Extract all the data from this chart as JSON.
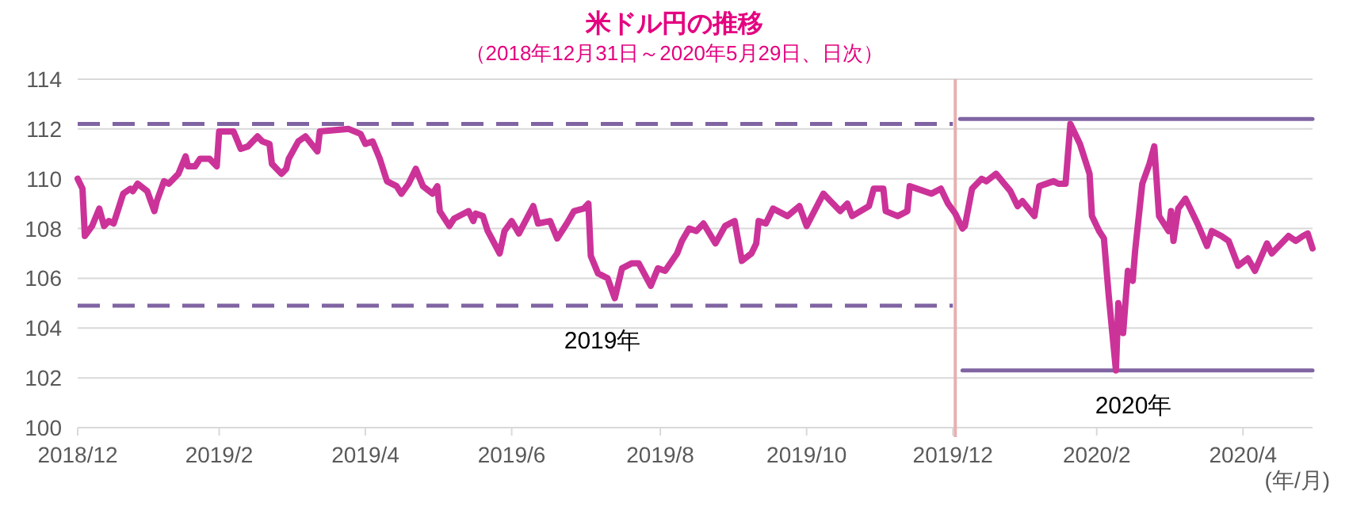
{
  "chart_data": {
    "type": "line",
    "title": "米ドル円の推移",
    "subtitle": "（2018年12月31日～2020年5月29日、日次）",
    "xlim": [
      "2018-12-31",
      "2020-05-29"
    ],
    "xticks": [
      {
        "value": "2018-12-31",
        "label": "2018/12"
      },
      {
        "value": "2019-02-28",
        "label": "2019/2"
      },
      {
        "value": "2019-04-30",
        "label": "2019/4"
      },
      {
        "value": "2019-06-30",
        "label": "2019/6"
      },
      {
        "value": "2019-08-31",
        "label": "2019/8"
      },
      {
        "value": "2019-10-31",
        "label": "2019/10"
      },
      {
        "value": "2019-12-31",
        "label": "2019/12"
      },
      {
        "value": "2020-02-29",
        "label": "2020/2"
      },
      {
        "value": "2020-04-30",
        "label": "2020/4"
      }
    ],
    "ylim": [
      100,
      114
    ],
    "yticks": [
      100,
      102,
      104,
      106,
      108,
      110,
      112,
      114
    ],
    "grid": "y",
    "series": [
      {
        "color": "#cc3399",
        "x": [
          "2018-12-31",
          "2019-01-02",
          "2019-01-03",
          "2019-01-06",
          "2019-01-09",
          "2019-01-11",
          "2019-01-13",
          "2019-01-15",
          "2019-01-17",
          "2019-01-19",
          "2019-01-22",
          "2019-01-23",
          "2019-01-25",
          "2019-01-29",
          "2019-02-01",
          "2019-02-02",
          "2019-02-05",
          "2019-02-07",
          "2019-02-11",
          "2019-02-14",
          "2019-02-15",
          "2019-02-18",
          "2019-02-20",
          "2019-02-24",
          "2019-02-27",
          "2019-02-28",
          "2019-03-06",
          "2019-03-09",
          "2019-03-12",
          "2019-03-16",
          "2019-03-18",
          "2019-03-21",
          "2019-03-22",
          "2019-03-26",
          "2019-03-28",
          "2019-03-29",
          "2019-04-02",
          "2019-04-05",
          "2019-04-10",
          "2019-04-11",
          "2019-04-23",
          "2019-04-28",
          "2019-04-30",
          "2019-05-03",
          "2019-05-06",
          "2019-05-09",
          "2019-05-13",
          "2019-05-15",
          "2019-05-18",
          "2019-05-21",
          "2019-05-24",
          "2019-05-28",
          "2019-05-30",
          "2019-05-31",
          "2019-06-04",
          "2019-06-06",
          "2019-06-10",
          "2019-06-12",
          "2019-06-14",
          "2019-06-15",
          "2019-06-18",
          "2019-06-20",
          "2019-06-25",
          "2019-06-27",
          "2019-06-30",
          "2019-07-03",
          "2019-07-09",
          "2019-07-11",
          "2019-07-16",
          "2019-07-19",
          "2019-07-23",
          "2019-07-26",
          "2019-07-30",
          "2019-08-01",
          "2019-08-02",
          "2019-08-05",
          "2019-08-09",
          "2019-08-12",
          "2019-08-15",
          "2019-08-19",
          "2019-08-22",
          "2019-08-27",
          "2019-08-30",
          "2019-09-02",
          "2019-09-07",
          "2019-09-09",
          "2019-09-12",
          "2019-09-15",
          "2019-09-18",
          "2019-09-23",
          "2019-09-27",
          "2019-10-01",
          "2019-10-04",
          "2019-10-08",
          "2019-10-10",
          "2019-10-11",
          "2019-10-14",
          "2019-10-17",
          "2019-10-23",
          "2019-10-28",
          "2019-10-31",
          "2019-11-07",
          "2019-11-10",
          "2019-11-14",
          "2019-11-17",
          "2019-11-19",
          "2019-11-26",
          "2019-11-28",
          "2019-12-02",
          "2019-12-03",
          "2019-12-08",
          "2019-12-12",
          "2019-12-13",
          "2019-12-22",
          "2019-12-26",
          "2019-12-29",
          "2020-01-01",
          "2020-01-03",
          "2020-01-04",
          "2020-01-05",
          "2020-01-08",
          "2020-01-12",
          "2020-01-14",
          "2020-01-18",
          "2020-01-24",
          "2020-01-27",
          "2020-01-29",
          "2020-02-03",
          "2020-02-05",
          "2020-02-11",
          "2020-02-13",
          "2020-02-16",
          "2020-02-18",
          "2020-02-22",
          "2020-02-26",
          "2020-02-27",
          "2020-03-01",
          "2020-03-03",
          "2020-03-05",
          "2020-03-08",
          "2020-03-09",
          "2020-03-11",
          "2020-03-13",
          "2020-03-15",
          "2020-03-16",
          "2020-03-19",
          "2020-03-22",
          "2020-03-24",
          "2020-03-26",
          "2020-03-30",
          "2020-03-31",
          "2020-04-01",
          "2020-04-03",
          "2020-04-06",
          "2020-04-11",
          "2020-04-15",
          "2020-04-17",
          "2020-04-21",
          "2020-04-24",
          "2020-04-28",
          "2020-05-02",
          "2020-05-05",
          "2020-05-10",
          "2020-05-12",
          "2020-05-19",
          "2020-05-22",
          "2020-05-25",
          "2020-05-27",
          "2020-05-29"
        ],
        "values": [
          110.0,
          109.6,
          107.7,
          108.1,
          108.8,
          108.1,
          108.3,
          108.2,
          108.8,
          109.4,
          109.6,
          109.5,
          109.8,
          109.5,
          108.7,
          109.1,
          109.9,
          109.8,
          110.2,
          110.9,
          110.5,
          110.5,
          110.8,
          110.8,
          110.5,
          111.9,
          111.9,
          111.2,
          111.3,
          111.7,
          111.5,
          111.4,
          110.6,
          110.2,
          110.4,
          110.8,
          111.5,
          111.7,
          111.1,
          111.9,
          112.0,
          111.8,
          111.4,
          111.5,
          110.8,
          109.9,
          109.7,
          109.4,
          109.8,
          110.4,
          109.7,
          109.4,
          109.7,
          108.7,
          108.1,
          108.4,
          108.6,
          108.7,
          108.3,
          108.6,
          108.5,
          107.9,
          107.0,
          107.9,
          108.3,
          107.8,
          108.9,
          108.2,
          108.3,
          107.6,
          108.2,
          108.7,
          108.8,
          109.0,
          106.9,
          106.2,
          106.0,
          105.2,
          106.4,
          106.6,
          106.6,
          105.7,
          106.4,
          106.3,
          107.0,
          107.5,
          108.0,
          107.9,
          108.2,
          107.4,
          108.1,
          108.3,
          106.7,
          107.0,
          107.4,
          108.3,
          108.2,
          108.8,
          108.5,
          108.9,
          108.1,
          109.4,
          109.1,
          108.7,
          109.0,
          108.5,
          108.9,
          109.6,
          109.6,
          108.7,
          108.5,
          108.7,
          109.7,
          109.4,
          109.6,
          109.0,
          108.6,
          108.2,
          108.0,
          108.1,
          109.6,
          110.0,
          109.9,
          110.2,
          109.5,
          108.9,
          109.1,
          108.5,
          109.7,
          109.9,
          109.8,
          109.8,
          112.2,
          111.4,
          110.2,
          108.5,
          107.9,
          107.6,
          105.3,
          102.3,
          105.0,
          103.8,
          106.3,
          105.9,
          107.1,
          109.8,
          110.6,
          111.3,
          108.5,
          107.9,
          108.7,
          107.5,
          108.8,
          109.2,
          108.2,
          107.3,
          107.9,
          107.7,
          107.5,
          106.5,
          106.8,
          106.3,
          107.4,
          107.0,
          107.7,
          107.5,
          107.7,
          107.8,
          107.2
        ]
      },
      {
        "type": "line",
        "color": "#8064a2",
        "line_style": "dashed",
        "x": [
          "2018-12-31",
          "2019-12-31"
        ],
        "values": [
          112.2,
          112.2
        ]
      },
      {
        "type": "line",
        "color": "#8064a2",
        "line_style": "dashed",
        "x": [
          "2018-12-31",
          "2019-12-31"
        ],
        "values": [
          104.9,
          104.9
        ]
      },
      {
        "type": "line",
        "color": "#8064a2",
        "line_style": "solid",
        "x": [
          "2020-01-03",
          "2020-05-29"
        ],
        "values": [
          112.4,
          112.4
        ]
      },
      {
        "type": "line",
        "color": "#8064a2",
        "line_style": "solid",
        "x": [
          "2020-01-04",
          "2020-05-29"
        ],
        "values": [
          102.3,
          102.3
        ]
      }
    ],
    "ref_lines": [
      {
        "axis": "x",
        "value": "2020-01-01",
        "color": "#e8b0b0"
      }
    ],
    "annotations": [
      "2019年",
      "2020年",
      "(年/月)"
    ]
  }
}
